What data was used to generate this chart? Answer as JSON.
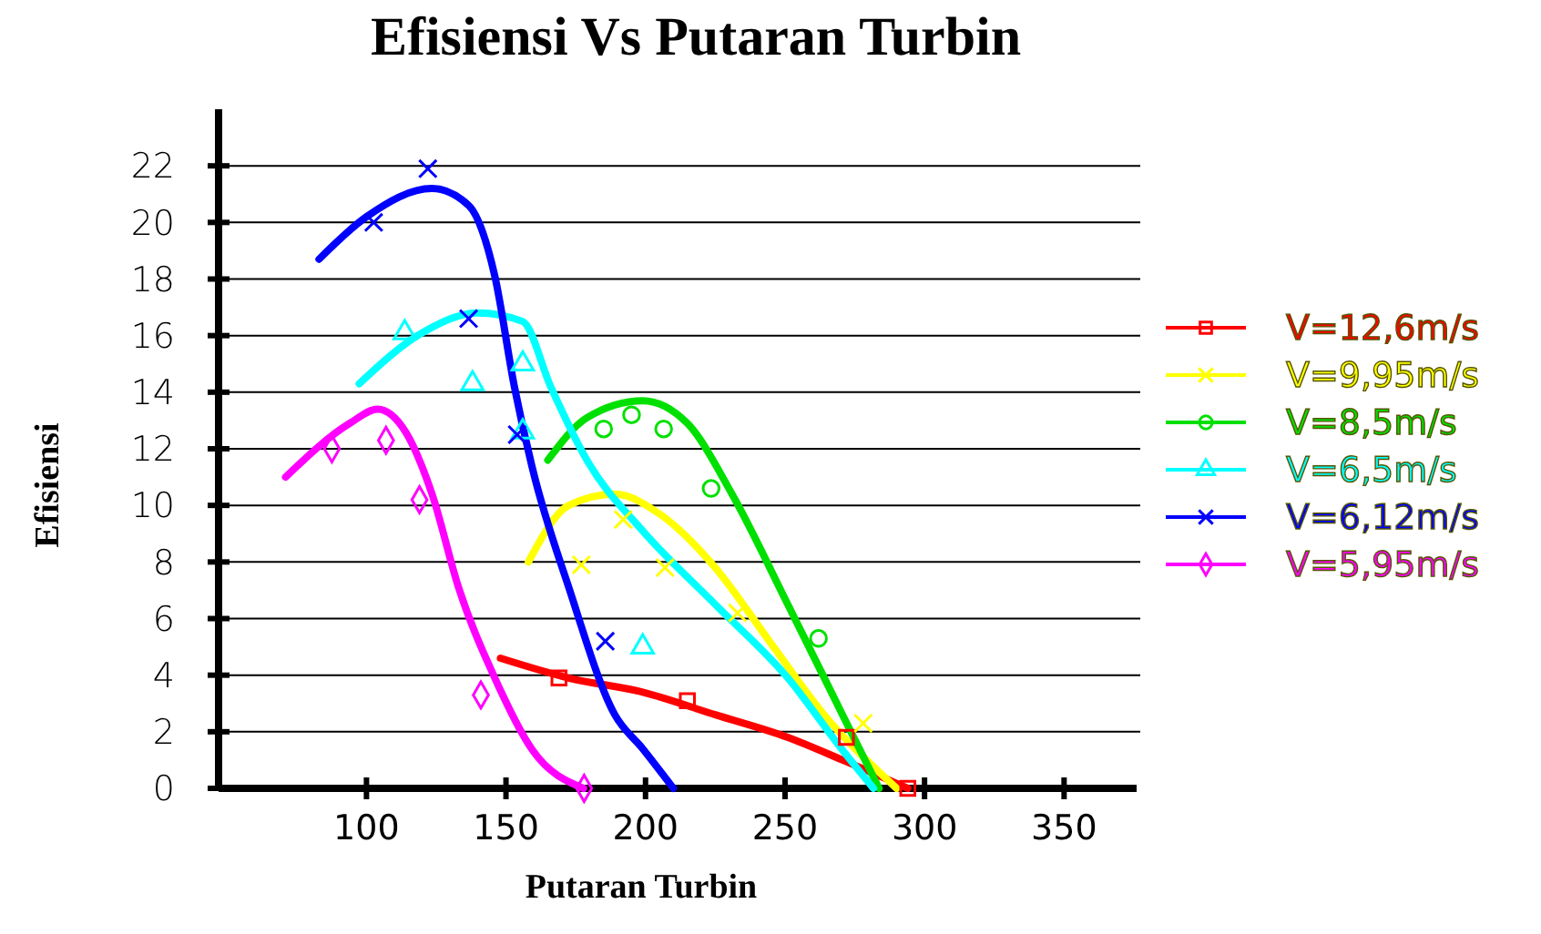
{
  "chart_data": {
    "type": "line",
    "title": "Efisiensi Vs Putaran Turbin",
    "xlabel": "Putaran Turbin",
    "ylabel": "Efisiensi",
    "xlim": [
      47,
      376
    ],
    "xticks": [
      100,
      150,
      200,
      250,
      300,
      350
    ],
    "ylim": [
      0,
      24
    ],
    "yticks": [
      0,
      2,
      4,
      6,
      8,
      10,
      12,
      14,
      16,
      18,
      20,
      22
    ],
    "grid": "y",
    "legend": "right",
    "line_style": "solid",
    "series": [
      {
        "name": "V=12,6m/s",
        "color": "#ff0000",
        "x": [
          148,
          172.5,
          199,
          225,
          251,
          270.6,
          294
        ],
        "values": [
          4.6,
          3.9,
          3.4,
          2.6,
          1.8,
          1.0,
          0
        ]
      },
      {
        "name": "V=9,95m/s",
        "color": "#ffff00",
        "x": [
          158,
          172.5,
          189,
          205,
          225,
          244.4,
          264,
          290
        ],
        "values": [
          8,
          10,
          10.4,
          9.7,
          7.8,
          5.2,
          2.6,
          0
        ]
      },
      {
        "name": "V=8,5m/s",
        "color": "#00e000",
        "x": [
          165,
          179,
          199,
          215,
          231,
          251,
          270.6,
          283.7
        ],
        "values": [
          11.6,
          13.1,
          13.7,
          12.9,
          10.4,
          6.5,
          2.6,
          0
        ]
      },
      {
        "name": "V=6,5m/s",
        "color": "#00ffff",
        "x": [
          97.4,
          120,
          140,
          156,
          166,
          179,
          199,
          225,
          251,
          270.6,
          281.7
        ],
        "values": [
          14.3,
          16.1,
          16.8,
          16.5,
          14.2,
          11.6,
          9.1,
          6.5,
          3.9,
          1.35,
          0
        ]
      },
      {
        "name": "V=6,12m/s",
        "color": "#0000ff",
        "x": [
          83,
          100,
          123.5,
          136.6,
          146,
          153,
          159.5,
          172.5,
          189,
          199,
          210
        ],
        "values": [
          18.7,
          20.2,
          21.2,
          20.6,
          18.1,
          14.2,
          11.3,
          7.1,
          2.6,
          1.4,
          0
        ]
      },
      {
        "name": "V=5,95m/s",
        "color": "#ff00ff",
        "x": [
          71,
          94,
          104,
          114,
          123.5,
          133,
          146,
          159.5,
          177.8
        ],
        "values": [
          11,
          12.9,
          13.4,
          12.6,
          10.4,
          7.1,
          3.9,
          1.35,
          0
        ]
      },
      {
        "type": "scatter",
        "marker": "square",
        "color": "#ff0000",
        "x": [
          169,
          215,
          272,
          294
        ],
        "values": [
          3.9,
          3.1,
          1.8,
          0
        ]
      },
      {
        "type": "scatter",
        "marker": "cross",
        "color": "#ffff00",
        "x": [
          177,
          192,
          207,
          233,
          278
        ],
        "values": [
          7.9,
          9.5,
          7.8,
          6.2,
          2.3
        ]
      },
      {
        "type": "scatter",
        "marker": "circle",
        "color": "#00e000",
        "x": [
          185,
          195,
          206.5,
          223.5,
          262
        ],
        "values": [
          12.7,
          13.2,
          12.7,
          10.6,
          5.3
        ]
      },
      {
        "type": "scatter",
        "marker": "triangle",
        "color": "#00ffff",
        "x": [
          113.7,
          138,
          156,
          156,
          199
        ],
        "values": [
          16.1,
          14.3,
          15,
          12.6,
          5
        ]
      },
      {
        "type": "scatter",
        "marker": "cross",
        "color": "#0000ff",
        "x": [
          102.6,
          122,
          136.6,
          154,
          185.6
        ],
        "values": [
          20,
          21.9,
          16.6,
          12.5,
          5.2
        ]
      },
      {
        "type": "scatter",
        "marker": "diamond",
        "color": "#ff00ff",
        "x": [
          87.6,
          107,
          119,
          141,
          178
        ],
        "values": [
          12,
          12.3,
          10.2,
          3.3,
          0
        ]
      }
    ]
  }
}
